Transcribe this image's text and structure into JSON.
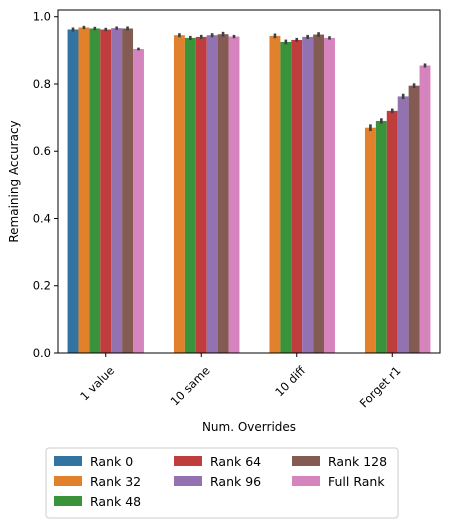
{
  "chart_data": {
    "type": "bar",
    "xlabel": "Num. Overrides",
    "ylabel": "Remaining Accuracy",
    "ylim": [
      0,
      1.02
    ],
    "yticks": [
      0.0,
      0.2,
      0.4,
      0.6,
      0.8,
      1.0
    ],
    "ytick_labels": [
      "0.0",
      "0.2",
      "0.4",
      "0.6",
      "0.8",
      "1.0"
    ],
    "categories": [
      "1 value",
      "10 same",
      "10 diff",
      "Forget r1"
    ],
    "legend_position": "below",
    "grid": false,
    "series": [
      {
        "name": "Rank 0",
        "color": "#3274a1",
        "values": [
          0.962,
          null,
          null,
          null
        ],
        "errors": [
          0.006,
          null,
          null,
          null
        ]
      },
      {
        "name": "Rank 32",
        "color": "#e1812c",
        "values": [
          0.968,
          0.945,
          0.943,
          0.67
        ],
        "errors": [
          0.005,
          0.006,
          0.007,
          0.01
        ]
      },
      {
        "name": "Rank 48",
        "color": "#3a923a",
        "values": [
          0.965,
          0.937,
          0.925,
          0.69
        ],
        "errors": [
          0.005,
          0.006,
          0.007,
          0.008
        ]
      },
      {
        "name": "Rank 64",
        "color": "#c03d3e",
        "values": [
          0.962,
          0.94,
          0.931,
          0.72
        ],
        "errors": [
          0.005,
          0.006,
          0.006,
          0.007
        ]
      },
      {
        "name": "Rank 96",
        "color": "#9372b2",
        "values": [
          0.966,
          0.945,
          0.94,
          0.763
        ],
        "errors": [
          0.005,
          0.006,
          0.006,
          0.008
        ]
      },
      {
        "name": "Rank 128",
        "color": "#845b53",
        "values": [
          0.965,
          0.948,
          0.947,
          0.795
        ],
        "errors": [
          0.006,
          0.007,
          0.007,
          0.007
        ]
      },
      {
        "name": "Full Rank",
        "color": "#d684bd",
        "values": [
          0.904,
          0.941,
          0.937,
          0.855
        ],
        "errors": [
          0.004,
          0.005,
          0.005,
          0.006
        ]
      }
    ]
  }
}
